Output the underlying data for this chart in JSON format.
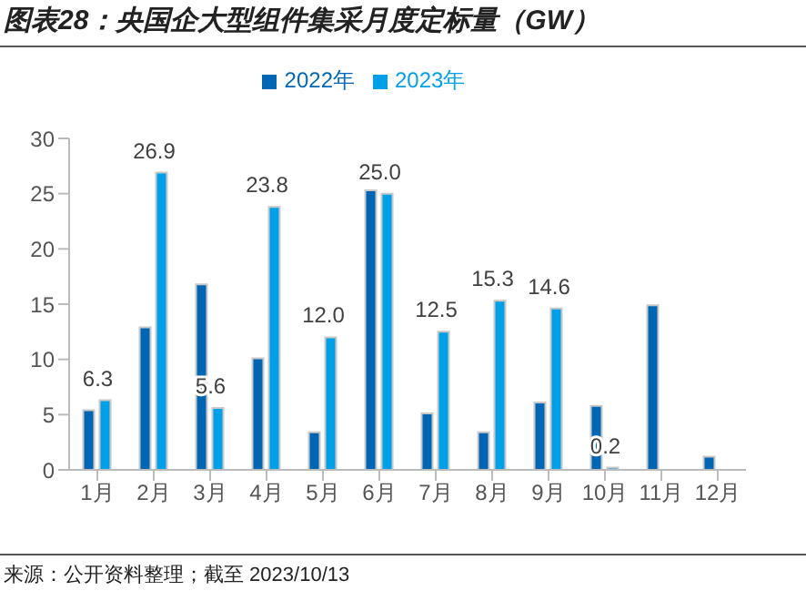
{
  "chart_data": {
    "type": "bar",
    "title": "图表28：央国企大型组件集采月度定标量（GW）",
    "categories": [
      "1月",
      "2月",
      "3月",
      "4月",
      "5月",
      "6月",
      "7月",
      "8月",
      "9月",
      "10月",
      "11月",
      "12月"
    ],
    "series": [
      {
        "name": "2022年",
        "color": "#0066b3",
        "values": [
          5.4,
          12.9,
          16.8,
          10.1,
          3.4,
          25.3,
          5.1,
          3.4,
          6.1,
          5.8,
          14.9,
          1.2
        ]
      },
      {
        "name": "2023年",
        "color": "#00a0e9",
        "values": [
          6.3,
          26.9,
          5.6,
          23.8,
          12.0,
          25.0,
          12.5,
          15.3,
          14.6,
          0.2,
          null,
          null
        ],
        "value_labels": [
          "6.3",
          "26.9",
          "5.6",
          "23.8",
          "12.0",
          "25.0",
          "12.5",
          "15.3",
          "14.6",
          "0.2",
          null,
          null
        ]
      }
    ],
    "ylim": [
      0,
      30
    ],
    "yticks": [
      0,
      5,
      10,
      15,
      20,
      25,
      30
    ],
    "grid": false,
    "legend": "top",
    "annotations": [
      "来源：公开资料整理；截至 2023/10/13"
    ]
  }
}
